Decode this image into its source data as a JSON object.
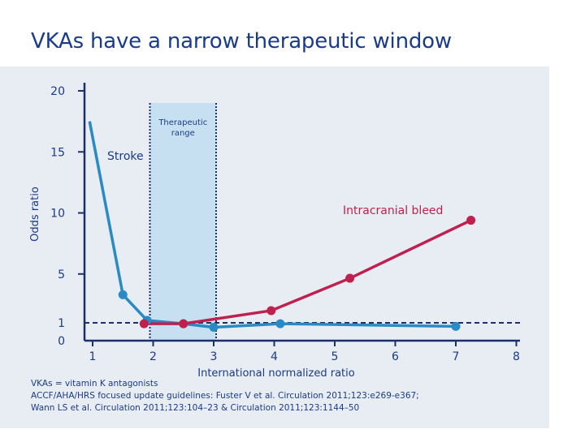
{
  "slide": {
    "title": "VKAs have a narrow therapeutic window"
  },
  "footnotes": [
    "VKAs = vitamin K antagonists",
    "ACCF/AHA/HRS focused update guidelines: Fuster V et al. Circulation 2011;123:e269-e367;",
    "Wann LS et al. Circulation 2011;123:104–23 & Circulation 2011;123:1144–50"
  ],
  "colors": {
    "title": "#1a3b8c",
    "stroke_series": "#2a8bc4",
    "bleed_series": "#c0204d",
    "therapeutic_fill": "#c7e0f1",
    "axis": "#1a2f6b"
  },
  "chart_data": {
    "type": "line",
    "title": "",
    "xlabel": "International normalized ratio",
    "ylabel": "Odds ratio",
    "xlim": [
      1,
      8
    ],
    "x_ticks": [
      "1",
      "2",
      "3",
      "4",
      "5",
      "6",
      "7",
      "8"
    ],
    "y_ticks": [
      "0",
      "1",
      "5",
      "10",
      "15",
      "20"
    ],
    "reference_line": {
      "y": 1,
      "style": "dashed"
    },
    "therapeutic_range": {
      "x_start": 2,
      "x_end": 3,
      "label_line1": "Therapeutic",
      "label_line2": "range"
    },
    "series": [
      {
        "name": "Stroke",
        "label": "Stroke",
        "color": "#2a8bc4",
        "points": [
          {
            "x": 0.95,
            "y": 17.5,
            "marker": false
          },
          {
            "x": 1.5,
            "y": 3.3,
            "marker": true
          },
          {
            "x": 1.9,
            "y": 1.2,
            "marker": true
          },
          {
            "x": 2.5,
            "y": 0.95,
            "marker": true
          },
          {
            "x": 3.0,
            "y": 0.75,
            "marker": true
          },
          {
            "x": 4.1,
            "y": 0.95,
            "marker": true
          },
          {
            "x": 7.0,
            "y": 0.8,
            "marker": true
          }
        ]
      },
      {
        "name": "Intracranial bleed",
        "label": "Intracranial bleed",
        "color": "#c0204d",
        "points": [
          {
            "x": 1.85,
            "y": 0.95,
            "marker": true
          },
          {
            "x": 2.5,
            "y": 0.95,
            "marker": true
          },
          {
            "x": 3.95,
            "y": 2.0,
            "marker": true
          },
          {
            "x": 5.25,
            "y": 4.65,
            "marker": true
          },
          {
            "x": 7.25,
            "y": 9.4,
            "marker": true
          }
        ]
      }
    ]
  }
}
